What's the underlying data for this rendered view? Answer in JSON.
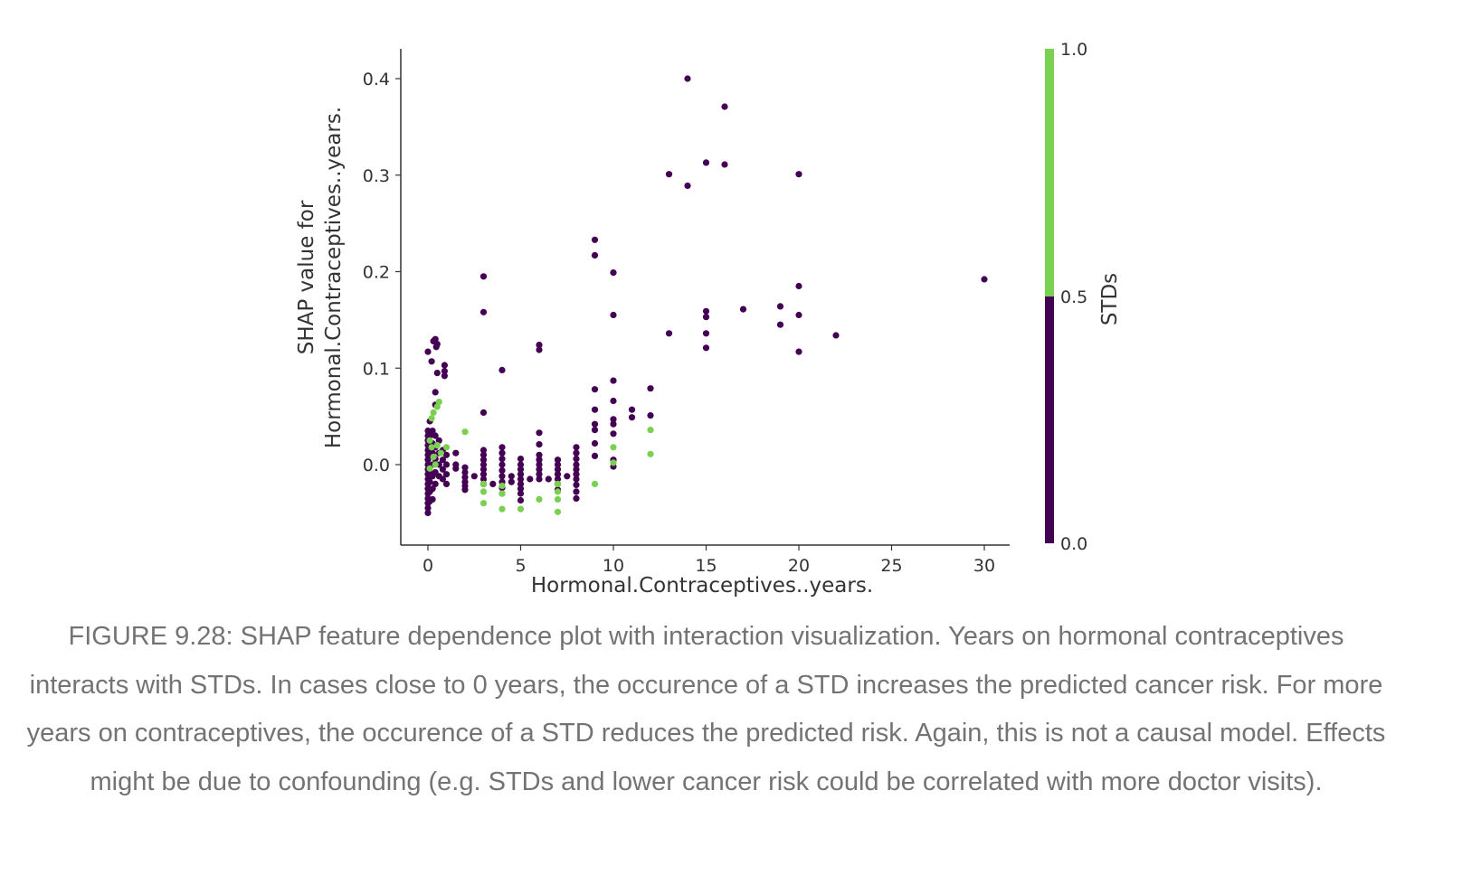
{
  "caption": "FIGURE 9.28: SHAP feature dependence plot with interaction visualization. Years on hormonal contraceptives interacts with STDs. In cases close to 0 years, the occurence of a STD increases the predicted cancer risk. For more years on contraceptives, the occurence of a STD reduces the predicted risk. Again, this is not a causal model. Effects might be due to confounding (e.g. STDs and lower cancer risk could be correlated with more doctor visits).",
  "colors": {
    "std_low": "#440154",
    "std_high": "#7ad151",
    "axis": "#333333",
    "caption": "#737373"
  },
  "chart_data": {
    "type": "scatter",
    "title": "",
    "xlabel": "Hormonal.Contraceptives..years.",
    "ylabel_line1": "SHAP value for",
    "ylabel_line2": "Hormonal.Contraceptives..years.",
    "xlim": [
      -1.5,
      31.5
    ],
    "ylim": [
      -0.085,
      0.43
    ],
    "xticks": [
      0,
      5,
      10,
      15,
      20,
      25,
      30
    ],
    "yticks": [
      0.0,
      0.1,
      0.2,
      0.3,
      0.4
    ],
    "grid": false,
    "colorbar": {
      "label": "STDs",
      "range": [
        0.0,
        1.0
      ],
      "ticks": [
        "0.0",
        "0.5",
        "1.0"
      ],
      "low_color": "#440154",
      "high_color": "#7ad151",
      "split": 0.5
    },
    "series": [
      {
        "color_value": 0,
        "points": [
          [
            14,
            0.4
          ],
          [
            16,
            0.371
          ],
          [
            15,
            0.313
          ],
          [
            16,
            0.311
          ],
          [
            13,
            0.301
          ],
          [
            20,
            0.301
          ],
          [
            14,
            0.289
          ],
          [
            9,
            0.233
          ],
          [
            9,
            0.217
          ],
          [
            10,
            0.199
          ],
          [
            3,
            0.195
          ],
          [
            20,
            0.185
          ],
          [
            30,
            0.192
          ],
          [
            17,
            0.161
          ],
          [
            19,
            0.164
          ],
          [
            15,
            0.159
          ],
          [
            15,
            0.153
          ],
          [
            3,
            0.158
          ],
          [
            10,
            0.155
          ],
          [
            20,
            0.155
          ],
          [
            19,
            0.145
          ],
          [
            15,
            0.136
          ],
          [
            13,
            0.136
          ],
          [
            22,
            0.134
          ],
          [
            15,
            0.121
          ],
          [
            20,
            0.117
          ],
          [
            0.3,
            0.128
          ],
          [
            0.4,
            0.13
          ],
          [
            0.5,
            0.125
          ],
          [
            0.45,
            0.122
          ],
          [
            6,
            0.124
          ],
          [
            6,
            0.119
          ],
          [
            0,
            0.117
          ],
          [
            0.2,
            0.107
          ],
          [
            0.5,
            0.095
          ],
          [
            0.9,
            0.103
          ],
          [
            0.9,
            0.097
          ],
          [
            0.9,
            0.092
          ],
          [
            4,
            0.098
          ],
          [
            10,
            0.087
          ],
          [
            9,
            0.078
          ],
          [
            12,
            0.079
          ],
          [
            0.4,
            0.075
          ],
          [
            10,
            0.066
          ],
          [
            9,
            0.057
          ],
          [
            11,
            0.057
          ],
          [
            12,
            0.051
          ],
          [
            11,
            0.049
          ],
          [
            10,
            0.047
          ],
          [
            10,
            0.042
          ],
          [
            9,
            0.042
          ],
          [
            9,
            0.036
          ],
          [
            3,
            0.054
          ],
          [
            0.4,
            0.062
          ],
          [
            0.1,
            0.045
          ],
          [
            10,
            0.032
          ],
          [
            6,
            0.033
          ],
          [
            9,
            0.022
          ],
          [
            6,
            0.021
          ],
          [
            9,
            0.009
          ],
          [
            10,
            0.005
          ],
          [
            10,
            -0.002
          ],
          [
            0,
            0.035
          ],
          [
            0,
            0.03
          ],
          [
            0,
            0.025
          ],
          [
            0,
            0.02
          ],
          [
            0,
            0.015
          ],
          [
            0,
            0.01
          ],
          [
            0,
            0.005
          ],
          [
            0,
            0.0
          ],
          [
            0,
            -0.005
          ],
          [
            0,
            -0.01
          ],
          [
            0,
            -0.015
          ],
          [
            0,
            -0.02
          ],
          [
            0,
            -0.025
          ],
          [
            0,
            -0.03
          ],
          [
            0,
            -0.035
          ],
          [
            0,
            -0.04
          ],
          [
            0,
            -0.045
          ],
          [
            0,
            -0.05
          ],
          [
            0.1,
            0.03
          ],
          [
            0.1,
            0.02
          ],
          [
            0.1,
            0.01
          ],
          [
            0.1,
            -0.008
          ],
          [
            0.1,
            -0.018
          ],
          [
            0.1,
            -0.028
          ],
          [
            0.1,
            -0.038
          ],
          [
            0.25,
            0.035
          ],
          [
            0.25,
            0.022
          ],
          [
            0.25,
            0.012
          ],
          [
            0.25,
            0.0
          ],
          [
            0.25,
            -0.012
          ],
          [
            0.25,
            -0.025
          ],
          [
            0.25,
            -0.036
          ],
          [
            0.4,
            0.03
          ],
          [
            0.4,
            0.018
          ],
          [
            0.4,
            0.006
          ],
          [
            0.4,
            -0.008
          ],
          [
            0.4,
            -0.02
          ],
          [
            0.6,
            0.025
          ],
          [
            0.6,
            0.012
          ],
          [
            0.6,
            0.0
          ],
          [
            0.6,
            -0.012
          ],
          [
            0.8,
            0.015
          ],
          [
            0.8,
            0.005
          ],
          [
            0.8,
            -0.005
          ],
          [
            0.8,
            -0.015
          ],
          [
            1.0,
            0.01
          ],
          [
            1.0,
            0.0
          ],
          [
            1.0,
            -0.01
          ],
          [
            1.0,
            -0.02
          ],
          [
            1.5,
            0.012
          ],
          [
            1.5,
            0.0
          ],
          [
            1.5,
            -0.004
          ],
          [
            2,
            -0.003
          ],
          [
            2,
            -0.008
          ],
          [
            2,
            -0.013
          ],
          [
            2,
            -0.018
          ],
          [
            2,
            -0.022
          ],
          [
            2,
            -0.026
          ],
          [
            2.5,
            -0.012
          ],
          [
            3,
            0.015
          ],
          [
            3,
            0.01
          ],
          [
            3,
            0.005
          ],
          [
            3,
            0.0
          ],
          [
            3,
            -0.005
          ],
          [
            3,
            -0.01
          ],
          [
            3,
            -0.015
          ],
          [
            3,
            -0.02
          ],
          [
            3.5,
            -0.02
          ],
          [
            4,
            0.018
          ],
          [
            4,
            0.012
          ],
          [
            4,
            0.006
          ],
          [
            4,
            0.0
          ],
          [
            4,
            -0.006
          ],
          [
            4,
            -0.012
          ],
          [
            4,
            -0.018
          ],
          [
            4,
            -0.024
          ],
          [
            4,
            -0.03
          ],
          [
            4.5,
            -0.012
          ],
          [
            4.5,
            -0.018
          ],
          [
            5,
            0.006
          ],
          [
            5,
            0.0
          ],
          [
            5,
            -0.005
          ],
          [
            5,
            -0.01
          ],
          [
            5,
            -0.015
          ],
          [
            5,
            -0.02
          ],
          [
            5,
            -0.025
          ],
          [
            5,
            -0.03
          ],
          [
            5,
            -0.037
          ],
          [
            5.5,
            -0.015
          ],
          [
            6,
            0.01
          ],
          [
            6,
            0.005
          ],
          [
            6,
            0.0
          ],
          [
            6,
            -0.005
          ],
          [
            6,
            -0.01
          ],
          [
            6,
            -0.015
          ],
          [
            6.5,
            -0.015
          ],
          [
            7,
            0.005
          ],
          [
            7,
            0.0
          ],
          [
            7,
            -0.005
          ],
          [
            7,
            -0.01
          ],
          [
            7,
            -0.015
          ],
          [
            7,
            -0.02
          ],
          [
            7,
            -0.026
          ],
          [
            7.5,
            -0.012
          ],
          [
            8,
            0.018
          ],
          [
            8,
            0.012
          ],
          [
            8,
            0.006
          ],
          [
            8,
            0.0
          ],
          [
            8,
            -0.005
          ],
          [
            8,
            -0.01
          ],
          [
            8,
            -0.015
          ],
          [
            8,
            -0.021
          ],
          [
            8,
            -0.028
          ],
          [
            8,
            -0.035
          ]
        ]
      },
      {
        "color_value": 1,
        "points": [
          [
            0.3,
            0.054
          ],
          [
            0.5,
            0.06
          ],
          [
            0.6,
            0.065
          ],
          [
            0.2,
            0.048
          ],
          [
            0.1,
            0.025
          ],
          [
            0.2,
            0.018
          ],
          [
            0.3,
            0.008
          ],
          [
            0.4,
            0.0
          ],
          [
            0.1,
            -0.004
          ],
          [
            0.5,
            0.02
          ],
          [
            0.7,
            0.012
          ],
          [
            1.0,
            0.018
          ],
          [
            2,
            0.034
          ],
          [
            3,
            -0.02
          ],
          [
            3,
            -0.028
          ],
          [
            3,
            -0.04
          ],
          [
            4,
            -0.022
          ],
          [
            4,
            -0.03
          ],
          [
            4,
            -0.046
          ],
          [
            5,
            -0.046
          ],
          [
            6,
            -0.036
          ],
          [
            7,
            -0.02
          ],
          [
            7,
            -0.028
          ],
          [
            7,
            -0.036
          ],
          [
            7,
            -0.049
          ],
          [
            9,
            -0.02
          ],
          [
            10,
            0.018
          ],
          [
            10,
            0.002
          ],
          [
            12,
            0.036
          ],
          [
            12,
            0.011
          ]
        ]
      }
    ]
  }
}
